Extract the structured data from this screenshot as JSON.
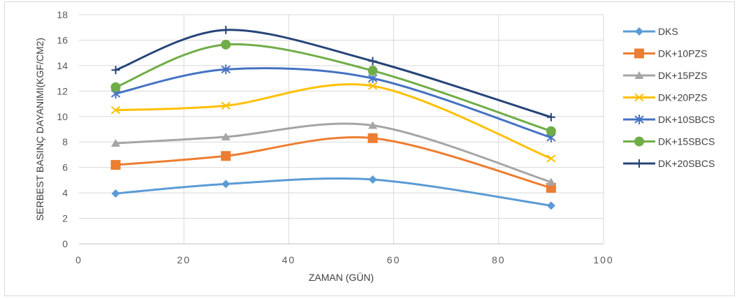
{
  "chart_data": {
    "type": "line",
    "title": "",
    "xlabel": "ZAMAN (GÜN)",
    "ylabel": "SERBEST BASINÇ DAYANIMI(KGF/CM2)",
    "xlim": [
      0,
      100
    ],
    "ylim": [
      0,
      18
    ],
    "x_ticks": [
      0,
      20,
      40,
      60,
      80,
      100
    ],
    "y_ticks": [
      0,
      2,
      4,
      6,
      8,
      10,
      12,
      14,
      16,
      18
    ],
    "grid": "vertical and horizontal major gridlines",
    "legend_position": "right",
    "smooth": true,
    "x": [
      7,
      28,
      56,
      90
    ],
    "series": [
      {
        "name": "DKS",
        "values": [
          3.95,
          4.7,
          5.05,
          3.0
        ],
        "color": "#5b9bd5",
        "marker": "diamond"
      },
      {
        "name": "DK+10PZS",
        "values": [
          6.2,
          6.9,
          8.3,
          4.4
        ],
        "color": "#ed7d31",
        "marker": "square"
      },
      {
        "name": "DK+15PZS",
        "values": [
          7.9,
          8.4,
          9.3,
          4.85
        ],
        "color": "#a5a5a5",
        "marker": "triangle"
      },
      {
        "name": "DK+20PZS",
        "values": [
          10.5,
          10.85,
          12.4,
          6.7
        ],
        "color": "#ffc000",
        "marker": "x"
      },
      {
        "name": "DK+10SBCS",
        "values": [
          11.8,
          13.7,
          13.0,
          8.35
        ],
        "color": "#4472c4",
        "marker": "star"
      },
      {
        "name": "DK+15SBCS",
        "values": [
          12.3,
          15.65,
          13.6,
          8.85
        ],
        "color": "#70ad47",
        "marker": "circle"
      },
      {
        "name": "DK+20SBCS",
        "values": [
          13.65,
          16.8,
          14.35,
          9.95
        ],
        "color": "#264478",
        "marker": "plus"
      }
    ]
  }
}
